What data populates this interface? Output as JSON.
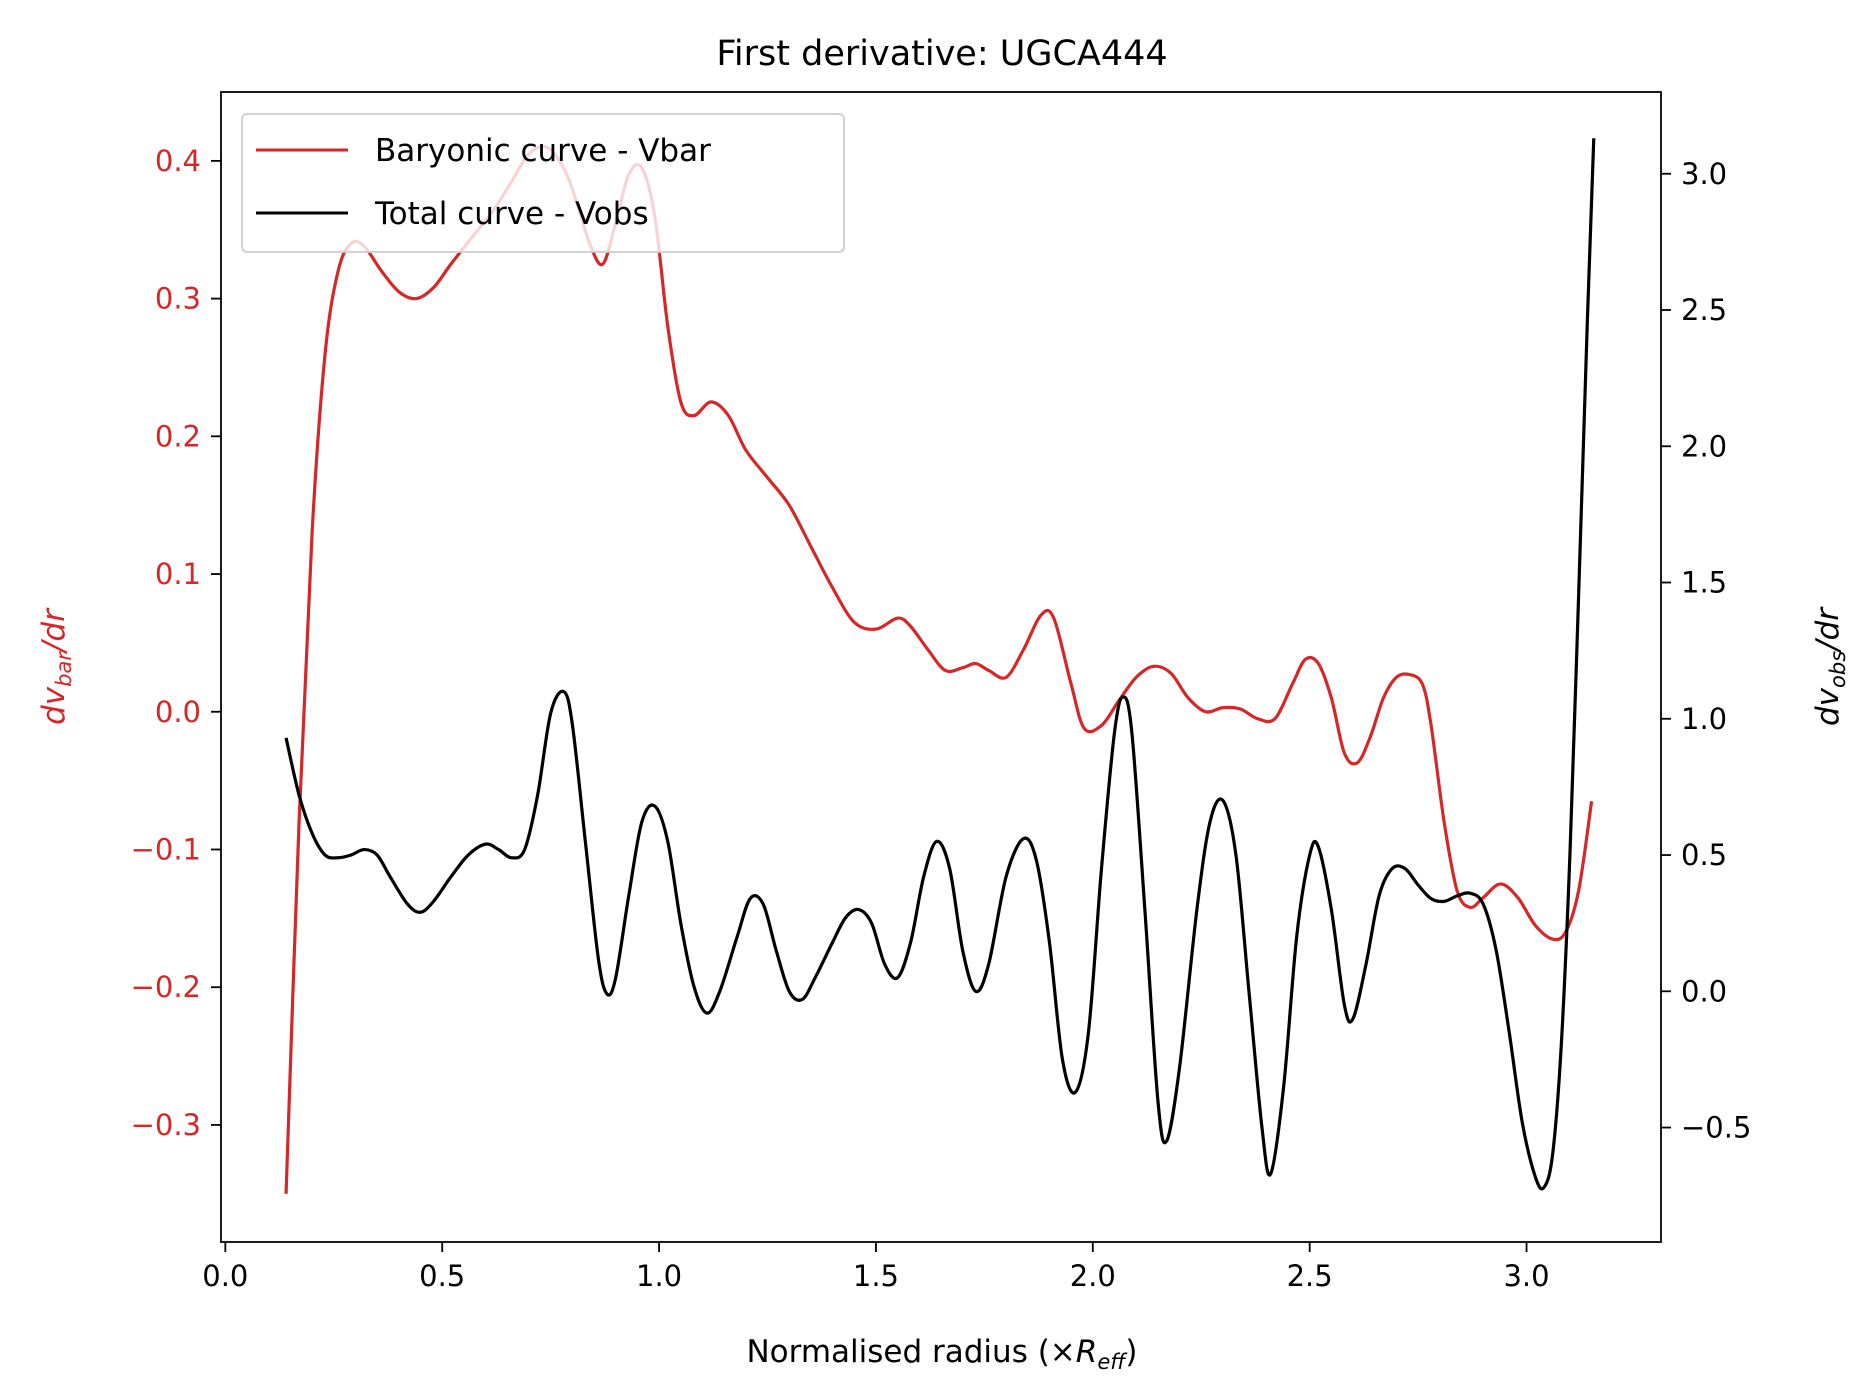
{
  "chart_data": {
    "type": "line",
    "title": "First derivative: UGCA444",
    "xlabel": {
      "prefix": "Normalised radius (×",
      "symbol": "R",
      "sub": "eff",
      "suffix": ")"
    },
    "ylabel_left": {
      "prefix": "dv",
      "sub": "bar",
      "suffix": "/dr"
    },
    "ylabel_right": {
      "prefix": "dv",
      "sub": "obs",
      "suffix": "/dr"
    },
    "xlim": [
      -0.01,
      3.31
    ],
    "ylim_left": [
      -0.385,
      0.45
    ],
    "ylim_right": [
      -0.92,
      3.3
    ],
    "x_ticks": [
      "0.0",
      "0.5",
      "1.0",
      "1.5",
      "2.0",
      "2.5",
      "3.0"
    ],
    "x_tick_values": [
      0.0,
      0.5,
      1.0,
      1.5,
      2.0,
      2.5,
      3.0
    ],
    "y_left_ticks": [
      "−0.3",
      "−0.2",
      "−0.1",
      "0.0",
      "0.1",
      "0.2",
      "0.3",
      "0.4"
    ],
    "y_left_tick_values": [
      -0.3,
      -0.2,
      -0.1,
      0.0,
      0.1,
      0.2,
      0.3,
      0.4
    ],
    "y_right_ticks": [
      "−0.5",
      "0.0",
      "0.5",
      "1.0",
      "1.5",
      "2.0",
      "2.5",
      "3.0"
    ],
    "y_right_tick_values": [
      -0.5,
      0.0,
      0.5,
      1.0,
      1.5,
      2.0,
      2.5,
      3.0
    ],
    "legend_position": "top-left",
    "colors": {
      "bar": "#d62728",
      "obs": "#000000",
      "axis": "#000000"
    },
    "series": [
      {
        "name": "Baryonic curve - Vbar",
        "axis": "left",
        "color": "#d62728",
        "points": [
          [
            0.14,
            -0.35
          ],
          [
            0.17,
            -0.08
          ],
          [
            0.2,
            0.13
          ],
          [
            0.23,
            0.26
          ],
          [
            0.26,
            0.32
          ],
          [
            0.29,
            0.34
          ],
          [
            0.32,
            0.338
          ],
          [
            0.36,
            0.32
          ],
          [
            0.4,
            0.305
          ],
          [
            0.44,
            0.3
          ],
          [
            0.48,
            0.308
          ],
          [
            0.52,
            0.325
          ],
          [
            0.57,
            0.345
          ],
          [
            0.62,
            0.365
          ],
          [
            0.66,
            0.385
          ],
          [
            0.7,
            0.405
          ],
          [
            0.74,
            0.41
          ],
          [
            0.78,
            0.395
          ],
          [
            0.81,
            0.37
          ],
          [
            0.84,
            0.34
          ],
          [
            0.87,
            0.325
          ],
          [
            0.9,
            0.355
          ],
          [
            0.93,
            0.39
          ],
          [
            0.96,
            0.395
          ],
          [
            0.99,
            0.36
          ],
          [
            1.02,
            0.28
          ],
          [
            1.05,
            0.225
          ],
          [
            1.08,
            0.215
          ],
          [
            1.12,
            0.225
          ],
          [
            1.16,
            0.215
          ],
          [
            1.2,
            0.19
          ],
          [
            1.25,
            0.17
          ],
          [
            1.3,
            0.15
          ],
          [
            1.35,
            0.12
          ],
          [
            1.4,
            0.09
          ],
          [
            1.45,
            0.065
          ],
          [
            1.5,
            0.06
          ],
          [
            1.55,
            0.068
          ],
          [
            1.58,
            0.062
          ],
          [
            1.62,
            0.045
          ],
          [
            1.66,
            0.03
          ],
          [
            1.7,
            0.032
          ],
          [
            1.73,
            0.035
          ],
          [
            1.76,
            0.03
          ],
          [
            1.8,
            0.025
          ],
          [
            1.84,
            0.045
          ],
          [
            1.88,
            0.07
          ],
          [
            1.91,
            0.068
          ],
          [
            1.95,
            0.02
          ],
          [
            1.98,
            -0.012
          ],
          [
            2.02,
            -0.01
          ],
          [
            2.06,
            0.008
          ],
          [
            2.1,
            0.025
          ],
          [
            2.14,
            0.033
          ],
          [
            2.18,
            0.028
          ],
          [
            2.22,
            0.01
          ],
          [
            2.26,
            0.0
          ],
          [
            2.3,
            0.003
          ],
          [
            2.34,
            0.002
          ],
          [
            2.38,
            -0.005
          ],
          [
            2.42,
            -0.005
          ],
          [
            2.46,
            0.02
          ],
          [
            2.49,
            0.038
          ],
          [
            2.52,
            0.035
          ],
          [
            2.55,
            0.01
          ],
          [
            2.58,
            -0.03
          ],
          [
            2.61,
            -0.037
          ],
          [
            2.64,
            -0.018
          ],
          [
            2.67,
            0.01
          ],
          [
            2.7,
            0.025
          ],
          [
            2.73,
            0.027
          ],
          [
            2.76,
            0.02
          ],
          [
            2.78,
            -0.01
          ],
          [
            2.81,
            -0.08
          ],
          [
            2.84,
            -0.13
          ],
          [
            2.87,
            -0.142
          ],
          [
            2.9,
            -0.135
          ],
          [
            2.94,
            -0.125
          ],
          [
            2.98,
            -0.135
          ],
          [
            3.02,
            -0.155
          ],
          [
            3.06,
            -0.165
          ],
          [
            3.09,
            -0.16
          ],
          [
            3.12,
            -0.13
          ],
          [
            3.15,
            -0.065
          ]
        ]
      },
      {
        "name": "Total curve - Vobs",
        "axis": "right",
        "color": "#000000",
        "points": [
          [
            0.14,
            0.93
          ],
          [
            0.17,
            0.72
          ],
          [
            0.2,
            0.58
          ],
          [
            0.23,
            0.5
          ],
          [
            0.26,
            0.49
          ],
          [
            0.29,
            0.5
          ],
          [
            0.32,
            0.52
          ],
          [
            0.35,
            0.5
          ],
          [
            0.38,
            0.42
          ],
          [
            0.42,
            0.32
          ],
          [
            0.45,
            0.29
          ],
          [
            0.48,
            0.33
          ],
          [
            0.52,
            0.42
          ],
          [
            0.56,
            0.5
          ],
          [
            0.6,
            0.54
          ],
          [
            0.63,
            0.52
          ],
          [
            0.66,
            0.49
          ],
          [
            0.69,
            0.52
          ],
          [
            0.72,
            0.72
          ],
          [
            0.75,
            1.02
          ],
          [
            0.78,
            1.1
          ],
          [
            0.8,
            0.98
          ],
          [
            0.83,
            0.55
          ],
          [
            0.86,
            0.12
          ],
          [
            0.88,
            -0.01
          ],
          [
            0.9,
            0.05
          ],
          [
            0.93,
            0.35
          ],
          [
            0.96,
            0.62
          ],
          [
            0.99,
            0.68
          ],
          [
            1.02,
            0.55
          ],
          [
            1.05,
            0.25
          ],
          [
            1.08,
            0.02
          ],
          [
            1.11,
            -0.08
          ],
          [
            1.14,
            0.0
          ],
          [
            1.18,
            0.2
          ],
          [
            1.21,
            0.34
          ],
          [
            1.24,
            0.32
          ],
          [
            1.27,
            0.15
          ],
          [
            1.3,
            0.0
          ],
          [
            1.33,
            -0.03
          ],
          [
            1.36,
            0.05
          ],
          [
            1.4,
            0.18
          ],
          [
            1.43,
            0.27
          ],
          [
            1.46,
            0.3
          ],
          [
            1.49,
            0.25
          ],
          [
            1.52,
            0.1
          ],
          [
            1.55,
            0.05
          ],
          [
            1.58,
            0.18
          ],
          [
            1.61,
            0.42
          ],
          [
            1.64,
            0.55
          ],
          [
            1.67,
            0.45
          ],
          [
            1.7,
            0.15
          ],
          [
            1.73,
            0.0
          ],
          [
            1.76,
            0.1
          ],
          [
            1.8,
            0.42
          ],
          [
            1.84,
            0.56
          ],
          [
            1.87,
            0.48
          ],
          [
            1.9,
            0.18
          ],
          [
            1.93,
            -0.25
          ],
          [
            1.96,
            -0.37
          ],
          [
            1.99,
            -0.15
          ],
          [
            2.02,
            0.45
          ],
          [
            2.05,
            0.95
          ],
          [
            2.07,
            1.08
          ],
          [
            2.09,
            0.95
          ],
          [
            2.12,
            0.3
          ],
          [
            2.15,
            -0.4
          ],
          [
            2.17,
            -0.55
          ],
          [
            2.2,
            -0.28
          ],
          [
            2.24,
            0.3
          ],
          [
            2.27,
            0.62
          ],
          [
            2.3,
            0.7
          ],
          [
            2.33,
            0.5
          ],
          [
            2.36,
            0.0
          ],
          [
            2.39,
            -0.5
          ],
          [
            2.41,
            -0.67
          ],
          [
            2.44,
            -0.35
          ],
          [
            2.47,
            0.2
          ],
          [
            2.5,
            0.5
          ],
          [
            2.52,
            0.53
          ],
          [
            2.55,
            0.3
          ],
          [
            2.58,
            -0.05
          ],
          [
            2.6,
            -0.1
          ],
          [
            2.63,
            0.1
          ],
          [
            2.66,
            0.35
          ],
          [
            2.69,
            0.45
          ],
          [
            2.72,
            0.45
          ],
          [
            2.75,
            0.39
          ],
          [
            2.78,
            0.34
          ],
          [
            2.81,
            0.33
          ],
          [
            2.84,
            0.35
          ],
          [
            2.87,
            0.36
          ],
          [
            2.9,
            0.32
          ],
          [
            2.93,
            0.15
          ],
          [
            2.96,
            -0.15
          ],
          [
            2.99,
            -0.48
          ],
          [
            3.02,
            -0.68
          ],
          [
            3.04,
            -0.72
          ],
          [
            3.06,
            -0.6
          ],
          [
            3.08,
            -0.2
          ],
          [
            3.1,
            0.5
          ],
          [
            3.12,
            1.45
          ],
          [
            3.14,
            2.45
          ],
          [
            3.155,
            3.13
          ]
        ]
      }
    ]
  }
}
